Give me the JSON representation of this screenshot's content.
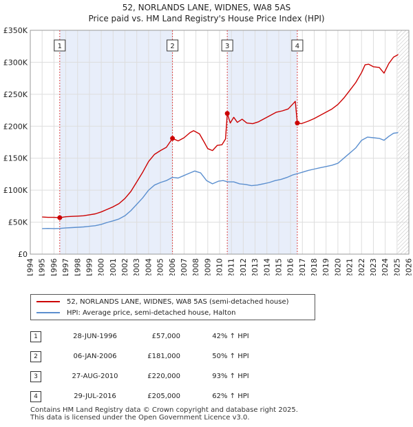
{
  "header": {
    "title_line1": "52, NORLANDS LANE, WIDNES, WA8 5AS",
    "title_line2": "Price paid vs. HM Land Registry's House Price Index (HPI)"
  },
  "chart_data": {
    "type": "line",
    "xlim": [
      1994,
      2026
    ],
    "ylim": [
      0,
      350000
    ],
    "x_ticks": [
      1994,
      1995,
      1996,
      1997,
      1998,
      1999,
      2000,
      2001,
      2002,
      2003,
      2004,
      2005,
      2006,
      2007,
      2008,
      2009,
      2010,
      2011,
      2012,
      2013,
      2014,
      2015,
      2016,
      2017,
      2018,
      2019,
      2020,
      2021,
      2022,
      2023,
      2024,
      2025,
      2026
    ],
    "y_ticks": [
      {
        "value": 0,
        "label": "£0"
      },
      {
        "value": 50000,
        "label": "£50K"
      },
      {
        "value": 100000,
        "label": "£100K"
      },
      {
        "value": 150000,
        "label": "£150K"
      },
      {
        "value": 200000,
        "label": "£200K"
      },
      {
        "value": 250000,
        "label": "£250K"
      },
      {
        "value": 300000,
        "label": "£300K"
      },
      {
        "value": 350000,
        "label": "£350K"
      }
    ],
    "shaded_ranges": [
      [
        1996.49,
        2006.02
      ],
      [
        2010.65,
        2016.57
      ]
    ],
    "future_hatch_start": 2025.05,
    "series": [
      {
        "name": "52, NORLANDS LANE, WIDNES, WA8 5AS (semi-detached house)",
        "color": "#cc0000",
        "points": [
          [
            1995.0,
            58000
          ],
          [
            1995.5,
            57500
          ],
          [
            1996.0,
            57500
          ],
          [
            1996.49,
            57000
          ],
          [
            1997.0,
            58500
          ],
          [
            1997.5,
            59000
          ],
          [
            1998.0,
            59500
          ],
          [
            1998.5,
            60000
          ],
          [
            1999.0,
            61500
          ],
          [
            1999.5,
            63000
          ],
          [
            2000.0,
            66000
          ],
          [
            2000.5,
            70000
          ],
          [
            2001.0,
            74000
          ],
          [
            2001.5,
            79000
          ],
          [
            2002.0,
            87000
          ],
          [
            2002.5,
            98000
          ],
          [
            2003.0,
            113000
          ],
          [
            2003.5,
            128000
          ],
          [
            2004.0,
            145000
          ],
          [
            2004.5,
            156000
          ],
          [
            2005.0,
            162000
          ],
          [
            2005.5,
            167000
          ],
          [
            2006.02,
            181000
          ],
          [
            2006.5,
            177000
          ],
          [
            2007.0,
            182000
          ],
          [
            2007.5,
            190000
          ],
          [
            2007.8,
            193000
          ],
          [
            2008.3,
            188000
          ],
          [
            2008.7,
            175000
          ],
          [
            2009.0,
            165000
          ],
          [
            2009.4,
            162000
          ],
          [
            2009.8,
            170000
          ],
          [
            2010.2,
            171000
          ],
          [
            2010.5,
            180000
          ],
          [
            2010.65,
            220000
          ],
          [
            2010.9,
            205000
          ],
          [
            2011.2,
            214000
          ],
          [
            2011.5,
            206000
          ],
          [
            2011.9,
            211000
          ],
          [
            2012.3,
            205000
          ],
          [
            2012.8,
            204000
          ],
          [
            2013.3,
            207000
          ],
          [
            2013.8,
            212000
          ],
          [
            2014.3,
            217000
          ],
          [
            2014.8,
            222000
          ],
          [
            2015.3,
            224000
          ],
          [
            2015.8,
            227000
          ],
          [
            2016.2,
            235000
          ],
          [
            2016.4,
            239000
          ],
          [
            2016.57,
            205000
          ],
          [
            2016.9,
            204000
          ],
          [
            2017.5,
            208000
          ],
          [
            2018.0,
            212000
          ],
          [
            2018.5,
            217000
          ],
          [
            2019.0,
            222000
          ],
          [
            2019.5,
            227000
          ],
          [
            2020.0,
            234000
          ],
          [
            2020.5,
            244000
          ],
          [
            2021.0,
            256000
          ],
          [
            2021.5,
            268000
          ],
          [
            2022.0,
            284000
          ],
          [
            2022.3,
            296000
          ],
          [
            2022.6,
            297000
          ],
          [
            2023.0,
            293000
          ],
          [
            2023.5,
            292000
          ],
          [
            2023.9,
            283000
          ],
          [
            2024.3,
            298000
          ],
          [
            2024.7,
            308000
          ],
          [
            2025.1,
            312000
          ]
        ]
      },
      {
        "name": "HPI: Average price, semi-detached house, Halton",
        "color": "#5b8fcf",
        "points": [
          [
            1995.0,
            40000
          ],
          [
            1995.5,
            40200
          ],
          [
            1996.0,
            40000
          ],
          [
            1996.5,
            40200
          ],
          [
            1997.0,
            41000
          ],
          [
            1997.5,
            41500
          ],
          [
            1998.0,
            42000
          ],
          [
            1998.5,
            42500
          ],
          [
            1999.0,
            43500
          ],
          [
            1999.5,
            44500
          ],
          [
            2000.0,
            46500
          ],
          [
            2000.5,
            49500
          ],
          [
            2001.0,
            52000
          ],
          [
            2001.5,
            55000
          ],
          [
            2002.0,
            60000
          ],
          [
            2002.5,
            68000
          ],
          [
            2003.0,
            78000
          ],
          [
            2003.5,
            88000
          ],
          [
            2004.0,
            100000
          ],
          [
            2004.5,
            108000
          ],
          [
            2005.0,
            112000
          ],
          [
            2005.5,
            115000
          ],
          [
            2006.0,
            120000
          ],
          [
            2006.5,
            119000
          ],
          [
            2007.0,
            123000
          ],
          [
            2007.5,
            127000
          ],
          [
            2007.9,
            130000
          ],
          [
            2008.4,
            127000
          ],
          [
            2008.9,
            115000
          ],
          [
            2009.4,
            110000
          ],
          [
            2009.9,
            114000
          ],
          [
            2010.3,
            115000
          ],
          [
            2010.7,
            113000
          ],
          [
            2011.2,
            113000
          ],
          [
            2011.7,
            110000
          ],
          [
            2012.2,
            109000
          ],
          [
            2012.7,
            107000
          ],
          [
            2013.2,
            108000
          ],
          [
            2013.7,
            110000
          ],
          [
            2014.2,
            112000
          ],
          [
            2014.7,
            115000
          ],
          [
            2015.2,
            117000
          ],
          [
            2015.7,
            120000
          ],
          [
            2016.2,
            124000
          ],
          [
            2016.6,
            126000
          ],
          [
            2017.0,
            128000
          ],
          [
            2017.5,
            131000
          ],
          [
            2018.0,
            133000
          ],
          [
            2018.5,
            135000
          ],
          [
            2019.0,
            137000
          ],
          [
            2019.5,
            139000
          ],
          [
            2020.0,
            142000
          ],
          [
            2020.5,
            150000
          ],
          [
            2021.0,
            158000
          ],
          [
            2021.5,
            166000
          ],
          [
            2022.0,
            178000
          ],
          [
            2022.5,
            183000
          ],
          [
            2023.0,
            182000
          ],
          [
            2023.5,
            181000
          ],
          [
            2023.9,
            178000
          ],
          [
            2024.3,
            184000
          ],
          [
            2024.7,
            189000
          ],
          [
            2025.1,
            190000
          ]
        ]
      }
    ],
    "markers": [
      {
        "label": "1",
        "x": 1996.49,
        "y": 57000
      },
      {
        "label": "2",
        "x": 2006.02,
        "y": 181000
      },
      {
        "label": "3",
        "x": 2010.65,
        "y": 220000
      },
      {
        "label": "4",
        "x": 2016.57,
        "y": 205000
      }
    ]
  },
  "legend": {
    "property": "52, NORLANDS LANE, WIDNES, WA8 5AS (semi-detached house)",
    "hpi": "HPI: Average price, semi-detached house, Halton"
  },
  "sales": [
    {
      "num": "1",
      "date": "28-JUN-1996",
      "price": "£57,000",
      "hpi": "42% ↑ HPI"
    },
    {
      "num": "2",
      "date": "06-JAN-2006",
      "price": "£181,000",
      "hpi": "50% ↑ HPI"
    },
    {
      "num": "3",
      "date": "27-AUG-2010",
      "price": "£220,000",
      "hpi": "93% ↑ HPI"
    },
    {
      "num": "4",
      "date": "29-JUL-2016",
      "price": "£205,000",
      "hpi": "62% ↑ HPI"
    }
  ],
  "footer": {
    "line1": "Contains HM Land Registry data © Crown copyright and database right 2025.",
    "line2": "This data is licensed under the Open Government Licence v3.0."
  },
  "colors": {
    "property": "#cc0000",
    "hpi": "#5b8fcf",
    "shade": "#e8eefa",
    "grid": "#dddddd"
  }
}
